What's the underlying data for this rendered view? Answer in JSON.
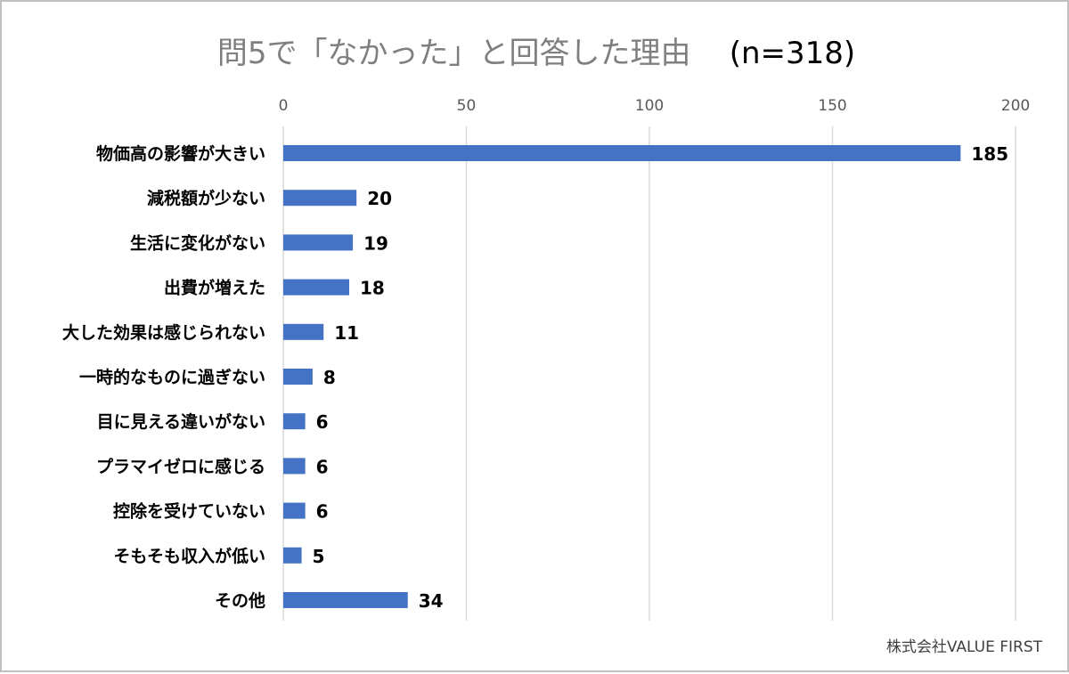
{
  "chart_data": {
    "type": "bar",
    "orientation": "horizontal",
    "title": "問5で「なかった」と回答した理由",
    "subtitle": "(n=318)",
    "categories": [
      "物価高の影響が大きい",
      "減税額が少ない",
      "生活に変化がない",
      "出費が増えた",
      "大した効果は感じられない",
      "一時的なものに過ぎない",
      "目に見える違いがない",
      "プラマイゼロに感じる",
      "控除を受けていない",
      "そもそも収入が低い",
      "その他"
    ],
    "values": [
      185,
      20,
      19,
      18,
      11,
      8,
      6,
      6,
      6,
      5,
      34
    ],
    "xlim": [
      0,
      200
    ],
    "xticks": [
      0,
      50,
      100,
      150,
      200
    ],
    "x_axis_position": "top",
    "grid": true,
    "legend": "none",
    "data_labels": true,
    "bar_color": "#4472c4"
  },
  "credit": "株式会社VALUE FIRST"
}
